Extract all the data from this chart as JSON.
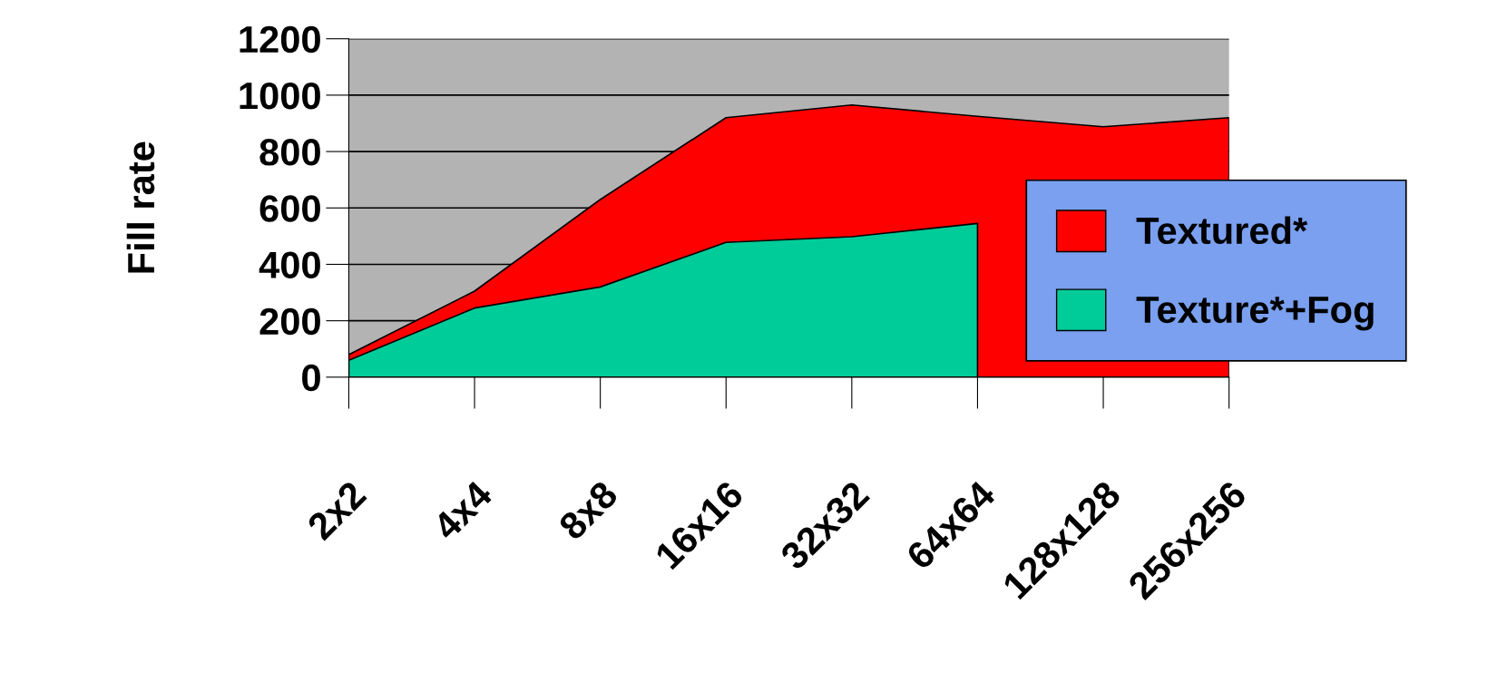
{
  "chart_data": {
    "type": "area",
    "ylabel": "Fill rate",
    "categories": [
      "2x2",
      "4x4",
      "8x8",
      "16x16",
      "32x32",
      "64x64",
      "128x128",
      "256x256"
    ],
    "series": [
      {
        "name": "Textured*",
        "color": "#ff0000",
        "values": [
          80,
          305,
          630,
          920,
          965,
          925,
          888,
          920
        ]
      },
      {
        "name": "Texture*+Fog",
        "color": "#00cc99",
        "values": [
          60,
          245,
          320,
          478,
          498,
          545,
          null,
          null
        ]
      }
    ],
    "ylim": [
      0,
      1200
    ],
    "yticks": [
      0,
      200,
      400,
      600,
      800,
      1000,
      1200
    ],
    "grid": "y",
    "legend": "right"
  }
}
